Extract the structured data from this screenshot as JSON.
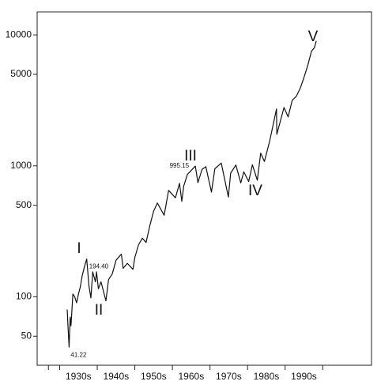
{
  "chart_data": {
    "type": "line",
    "log_scale": true,
    "color": "#111111",
    "xlim": [
      1924,
      2013
    ],
    "ylim": [
      30,
      15000
    ],
    "yticks": [
      50,
      100,
      500,
      1000,
      5000,
      10000
    ],
    "xticks": [
      {
        "value": 1935,
        "label": "1930s"
      },
      {
        "value": 1945,
        "label": "1940s"
      },
      {
        "value": 1955,
        "label": "1950s"
      },
      {
        "value": 1965,
        "label": "1960s"
      },
      {
        "value": 1975,
        "label": "1970s"
      },
      {
        "value": 1985,
        "label": "1980s"
      },
      {
        "value": 1995,
        "label": "1990s"
      }
    ],
    "x_minor_ticks": [
      1927,
      1930,
      1940,
      1950,
      1960,
      1970,
      1980,
      1990,
      2000
    ],
    "x": [
      1932.0,
      1932.2,
      1932.5,
      1932.8,
      1933.0,
      1933.5,
      1934.0,
      1934.5,
      1935.0,
      1935.5,
      1936.0,
      1936.6,
      1937.2,
      1937.8,
      1938.3,
      1938.8,
      1939.5,
      1939.8,
      1940.3,
      1941.0,
      1942.3,
      1943.0,
      1944.0,
      1945.0,
      1946.4,
      1946.9,
      1948.0,
      1949.5,
      1950.0,
      1951.0,
      1952.0,
      1953.0,
      1954.0,
      1955.0,
      1956.0,
      1957.8,
      1958.0,
      1959.0,
      1960.8,
      1961.9,
      1962.5,
      1963.0,
      1964.0,
      1966.1,
      1966.8,
      1967.9,
      1968.9,
      1970.4,
      1971.3,
      1973.0,
      1974.9,
      1975.5,
      1976.9,
      1978.2,
      1979.0,
      1980.3,
      1981.3,
      1982.6,
      1983.5,
      1984.5,
      1985.9,
      1987.7,
      1987.8,
      1989.7,
      1990.8,
      1991.9,
      1993.0,
      1994.0,
      1995.0,
      1996.0,
      1997.0,
      1997.8,
      1998.3
    ],
    "values": [
      80,
      60,
      41.22,
      70,
      60,
      105,
      100,
      90,
      105,
      120,
      145,
      170,
      194.4,
      120,
      98,
      155,
      130,
      155,
      115,
      130,
      93,
      135,
      150,
      190,
      212,
      165,
      180,
      162,
      200,
      250,
      280,
      260,
      350,
      450,
      520,
      420,
      450,
      650,
      570,
      735,
      535,
      700,
      860,
      995.15,
      745,
      940,
      985,
      630,
      950,
      1050,
      577,
      880,
      1015,
      740,
      900,
      760,
      1020,
      777,
      1250,
      1080,
      1550,
      2720,
      1740,
      2790,
      2365,
      3170,
      3400,
      3900,
      4700,
      5800,
      7500,
      8000,
      9000
    ],
    "value_labels": [
      null,
      null,
      "41.22",
      null,
      null,
      null,
      null,
      null,
      null,
      null,
      null,
      null,
      "194.40",
      null,
      null,
      null,
      null,
      null,
      null,
      null,
      null,
      null,
      null,
      null,
      null,
      null,
      null,
      null,
      null,
      null,
      null,
      null,
      null,
      null,
      null,
      null,
      null,
      null,
      null,
      null,
      null,
      null,
      null,
      "995.15",
      null,
      null,
      null,
      null,
      null,
      null,
      null,
      null,
      null,
      null,
      null,
      null,
      null,
      null,
      null,
      null,
      null,
      null,
      null,
      null,
      null,
      null,
      null,
      null,
      null,
      null,
      null,
      null,
      null
    ],
    "annotations": [
      "I",
      "II",
      "III",
      "IV",
      "V"
    ]
  }
}
